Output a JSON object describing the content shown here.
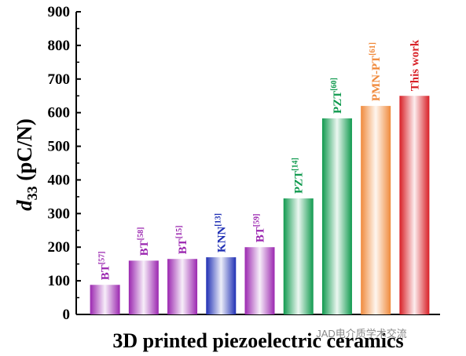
{
  "chart_data": {
    "type": "bar",
    "categories": [
      "BT[57]",
      "BT[58]",
      "BT[15]",
      "KNN[13]",
      "BT[59]",
      "PZT[14]",
      "PZT[60]",
      "PMN-PT[61]",
      "This work"
    ],
    "bars": [
      {
        "label": "BT",
        "ref": "[57]",
        "value": 88,
        "color": "#9b27b0"
      },
      {
        "label": "BT",
        "ref": "[58]",
        "value": 160,
        "color": "#9b27b0"
      },
      {
        "label": "BT",
        "ref": "[15]",
        "value": 165,
        "color": "#9b27b0"
      },
      {
        "label": "KNN",
        "ref": "[13]",
        "value": 170,
        "color": "#1f2fb4"
      },
      {
        "label": "BT",
        "ref": "[59]",
        "value": 200,
        "color": "#9b27b0"
      },
      {
        "label": "PZT",
        "ref": "[14]",
        "value": 345,
        "color": "#119a4f"
      },
      {
        "label": "PZT",
        "ref": "[60]",
        "value": 583,
        "color": "#119a4f"
      },
      {
        "label": "PMN-PT",
        "ref": "[61]",
        "value": 620,
        "color": "#f08a3c"
      },
      {
        "label": "This work",
        "ref": "",
        "value": 650,
        "color": "#d81f26"
      }
    ],
    "ylim": [
      0,
      900
    ],
    "yticks": [
      "0",
      "100",
      "200",
      "300",
      "400",
      "500",
      "600",
      "700",
      "800",
      "900"
    ],
    "ylabel_main": "d",
    "ylabel_sub": "33",
    "ylabel_rest": " (pC/N)",
    "xlabel": "3D printed piezoelectric ceramics",
    "grid": false,
    "legend": "none"
  },
  "watermark": "JAD电介质学术交流"
}
